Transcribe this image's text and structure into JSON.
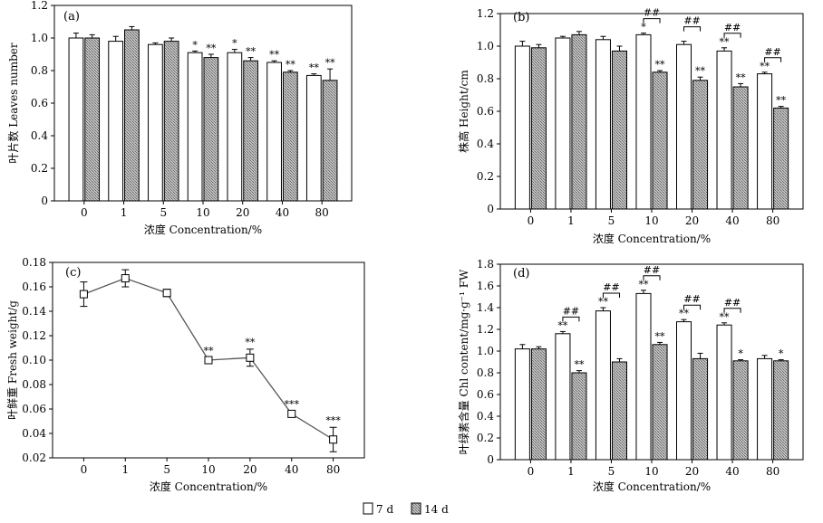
{
  "legend": {
    "items": [
      {
        "label": "7 d",
        "fill": "#ffffff"
      },
      {
        "label": "14 d",
        "fill": "#9e9e9e"
      }
    ]
  },
  "chart_data": [
    {
      "type": "bar",
      "panel": "(a)",
      "categories": [
        "0",
        "1",
        "5",
        "10",
        "20",
        "40",
        "80"
      ],
      "xlabel": "浓度 Concentration/%",
      "ylabel": "叶片数 Leaves number",
      "ylim": [
        0,
        1.2
      ],
      "yticks": [
        "0",
        "0.2",
        "0.4",
        "0.6",
        "0.8",
        "1.0",
        "1.2"
      ],
      "series": [
        {
          "name": "7 d",
          "values": [
            1.0,
            0.98,
            0.96,
            0.91,
            0.91,
            0.85,
            0.77
          ],
          "errors": [
            0.03,
            0.03,
            0.01,
            0.01,
            0.02,
            0.01,
            0.01
          ],
          "sig": [
            "",
            "",
            "",
            "*",
            "*",
            "**",
            "**"
          ]
        },
        {
          "name": "14 d",
          "values": [
            1.0,
            1.05,
            0.98,
            0.88,
            0.86,
            0.79,
            0.74
          ],
          "errors": [
            0.02,
            0.02,
            0.02,
            0.02,
            0.02,
            0.01,
            0.07
          ],
          "sig": [
            "",
            "",
            "",
            "**",
            "**",
            "**",
            "**"
          ]
        }
      ],
      "brackets": []
    },
    {
      "type": "bar",
      "panel": "(b)",
      "categories": [
        "0",
        "1",
        "5",
        "10",
        "20",
        "40",
        "80"
      ],
      "xlabel": "浓度 Concentration/%",
      "ylabel": "株高 Height/cm",
      "ylim": [
        0,
        1.2
      ],
      "yticks": [
        "0",
        "0.2",
        "0.4",
        "0.6",
        "0.8",
        "1.0",
        "1.2"
      ],
      "series": [
        {
          "name": "7 d",
          "values": [
            1.0,
            1.05,
            1.04,
            1.07,
            1.01,
            0.97,
            0.83
          ],
          "errors": [
            0.03,
            0.01,
            0.02,
            0.01,
            0.02,
            0.02,
            0.01
          ],
          "sig": [
            "",
            "",
            "",
            "*",
            "",
            "**",
            "**"
          ]
        },
        {
          "name": "14 d",
          "values": [
            0.99,
            1.07,
            0.97,
            0.84,
            0.79,
            0.75,
            0.62
          ],
          "errors": [
            0.02,
            0.02,
            0.03,
            0.01,
            0.02,
            0.02,
            0.01
          ],
          "sig": [
            "",
            "",
            "",
            "**",
            "**",
            "**",
            "**"
          ]
        }
      ],
      "brackets": [
        {
          "category": "10",
          "label": "##"
        },
        {
          "category": "20",
          "label": "##"
        },
        {
          "category": "40",
          "label": "##"
        },
        {
          "category": "80",
          "label": "##"
        }
      ]
    },
    {
      "type": "line",
      "panel": "(c)",
      "categories": [
        "0",
        "1",
        "5",
        "10",
        "20",
        "40",
        "80"
      ],
      "xlabel": "浓度 Concentration/%",
      "ylabel": "叶鲜重 Fresh weight/g",
      "ylim": [
        0.02,
        0.18
      ],
      "yticks": [
        "0.02",
        "0.04",
        "0.06",
        "0.08",
        "0.10",
        "0.12",
        "0.14",
        "0.16",
        "0.18"
      ],
      "series": [
        {
          "values": [
            0.154,
            0.167,
            0.155,
            0.1,
            0.102,
            0.056,
            0.035
          ],
          "errors": [
            0.01,
            0.007,
            0.003,
            0.002,
            0.007,
            0.002,
            0.01
          ],
          "sig": [
            "",
            "",
            "",
            "**",
            "**",
            "***",
            "***"
          ]
        }
      ]
    },
    {
      "type": "bar",
      "panel": "(d)",
      "categories": [
        "0",
        "1",
        "5",
        "10",
        "20",
        "40",
        "80"
      ],
      "xlabel": "浓度 Concentration/%",
      "ylabel": "叶绿素含量 Chl content/mg·g⁻¹ FW",
      "ylim": [
        0,
        1.8
      ],
      "yticks": [
        "0",
        "0.2",
        "0.4",
        "0.6",
        "0.8",
        "1.0",
        "1.2",
        "1.4",
        "1.6",
        "1.8"
      ],
      "series": [
        {
          "name": "7 d",
          "values": [
            1.02,
            1.16,
            1.37,
            1.53,
            1.27,
            1.24,
            0.93
          ],
          "errors": [
            0.04,
            0.02,
            0.03,
            0.03,
            0.02,
            0.02,
            0.03
          ],
          "sig": [
            "",
            "**",
            "**",
            "**",
            "**",
            "**",
            ""
          ]
        },
        {
          "name": "14 d",
          "values": [
            1.02,
            0.8,
            0.9,
            1.06,
            0.93,
            0.91,
            0.91
          ],
          "errors": [
            0.02,
            0.02,
            0.03,
            0.02,
            0.05,
            0.01,
            0.01
          ],
          "sig": [
            "",
            "**",
            "",
            "**",
            "",
            "*",
            "*"
          ]
        }
      ],
      "brackets": [
        {
          "category": "1",
          "label": "##"
        },
        {
          "category": "5",
          "label": "##"
        },
        {
          "category": "10",
          "label": "##"
        },
        {
          "category": "20",
          "label": "##"
        },
        {
          "category": "40",
          "label": "##"
        }
      ]
    }
  ]
}
